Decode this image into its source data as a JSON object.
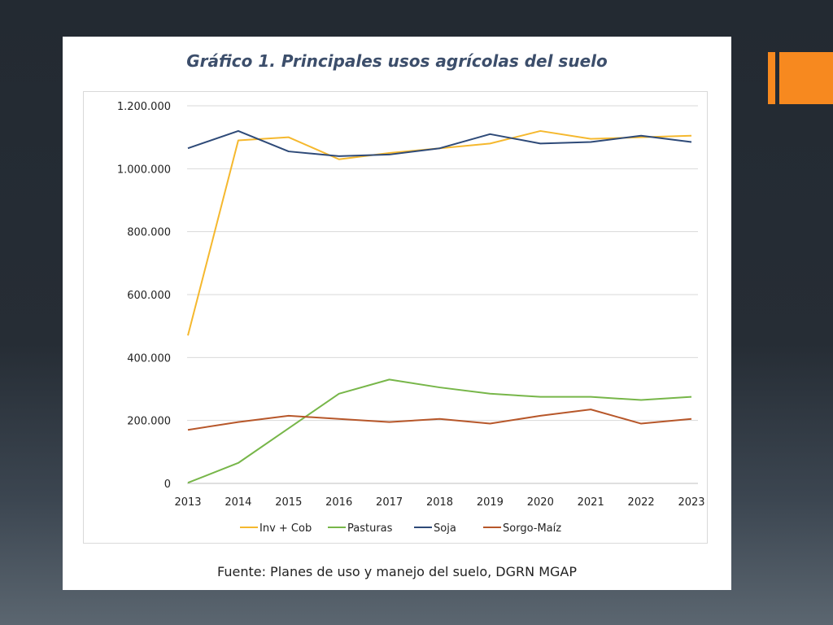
{
  "slide": {
    "title": "Gráfico 1. Principales usos agrícolas del suelo",
    "source": "Fuente: Planes de uso y manejo del suelo, DGRN MGAP"
  },
  "chart_data": {
    "type": "line",
    "title": "Gráfico 1. Principales usos agrícolas del suelo",
    "xlabel": "",
    "ylabel": "",
    "x": [
      "2013",
      "2014",
      "2015",
      "2016",
      "2017",
      "2018",
      "2019",
      "2020",
      "2021",
      "2022",
      "2023"
    ],
    "ylim": [
      0,
      1200000
    ],
    "yticks": [
      0,
      200000,
      400000,
      600000,
      800000,
      1000000,
      1200000
    ],
    "ytick_labels": [
      "0",
      "200.000",
      "400.000",
      "600.000",
      "800.000",
      "1.000.000",
      "1.200.000"
    ],
    "grid": true,
    "legend_position": "bottom",
    "series": [
      {
        "name": "Inv + Cob",
        "color": "#f5b82e",
        "values": [
          470000,
          1090000,
          1100000,
          1030000,
          1050000,
          1065000,
          1080000,
          1120000,
          1095000,
          1100000,
          1105000
        ]
      },
      {
        "name": "Pasturas",
        "color": "#77b649",
        "values": [
          2000,
          65000,
          175000,
          285000,
          330000,
          305000,
          285000,
          275000,
          275000,
          265000,
          275000
        ]
      },
      {
        "name": "Soja",
        "color": "#2e4a78",
        "values": [
          1065000,
          1120000,
          1055000,
          1040000,
          1045000,
          1065000,
          1110000,
          1080000,
          1085000,
          1105000,
          1085000
        ]
      },
      {
        "name": "Sorgo-Maíz",
        "color": "#b7572a",
        "values": [
          170000,
          195000,
          215000,
          205000,
          195000,
          205000,
          190000,
          215000,
          235000,
          190000,
          205000
        ]
      }
    ]
  }
}
